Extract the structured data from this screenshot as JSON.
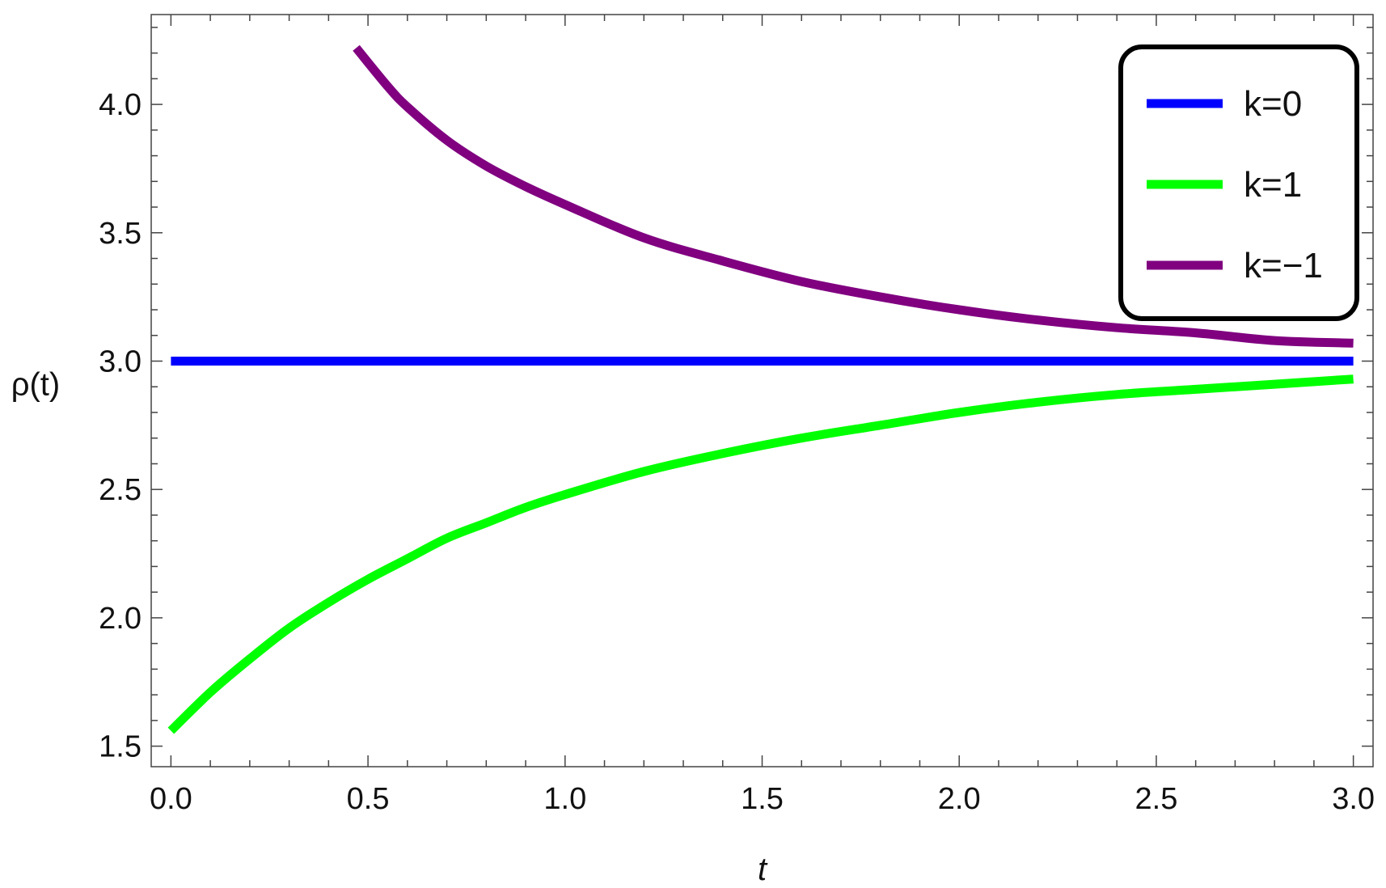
{
  "chart_data": {
    "type": "line",
    "xlabel": "t",
    "ylabel": "ρ(t)",
    "xlim": [
      -0.05,
      3.05
    ],
    "ylim": [
      1.42,
      4.35
    ],
    "xticks": [
      0.0,
      0.5,
      1.0,
      1.5,
      2.0,
      2.5,
      3.0
    ],
    "xtick_labels": [
      "0.0",
      "0.5",
      "1.0",
      "1.5",
      "2.0",
      "2.5",
      "3.0"
    ],
    "yticks": [
      1.5,
      2.0,
      2.5,
      3.0,
      3.5,
      4.0
    ],
    "ytick_labels": [
      "1.5",
      "2.0",
      "2.5",
      "3.0",
      "3.5",
      "4.0"
    ],
    "grid": false,
    "legend_position": "top-right",
    "series": [
      {
        "name": "k=0",
        "color": "#0000ff",
        "x": [
          0.0,
          0.5,
          1.0,
          1.5,
          2.0,
          2.5,
          3.0
        ],
        "y": [
          3.0,
          3.0,
          3.0,
          3.0,
          3.0,
          3.0,
          3.0
        ]
      },
      {
        "name": "k=1",
        "color": "#00ff00",
        "x": [
          0.0,
          0.1,
          0.2,
          0.3,
          0.4,
          0.5,
          0.6,
          0.7,
          0.8,
          0.9,
          1.0,
          1.2,
          1.4,
          1.6,
          1.8,
          2.0,
          2.2,
          2.4,
          2.6,
          2.8,
          3.0
        ],
        "y": [
          1.56,
          1.71,
          1.84,
          1.96,
          2.06,
          2.15,
          2.23,
          2.31,
          2.37,
          2.43,
          2.48,
          2.57,
          2.64,
          2.7,
          2.75,
          2.8,
          2.84,
          2.87,
          2.89,
          2.91,
          2.93
        ]
      },
      {
        "name": "k=−1",
        "color": "#800080",
        "x": [
          0.47,
          0.55,
          0.6,
          0.7,
          0.8,
          0.9,
          1.0,
          1.2,
          1.4,
          1.6,
          1.8,
          2.0,
          2.2,
          2.4,
          2.6,
          2.8,
          3.0
        ],
        "y": [
          4.22,
          4.07,
          3.99,
          3.86,
          3.76,
          3.68,
          3.61,
          3.48,
          3.39,
          3.31,
          3.25,
          3.2,
          3.16,
          3.13,
          3.11,
          3.08,
          3.07
        ]
      }
    ]
  }
}
